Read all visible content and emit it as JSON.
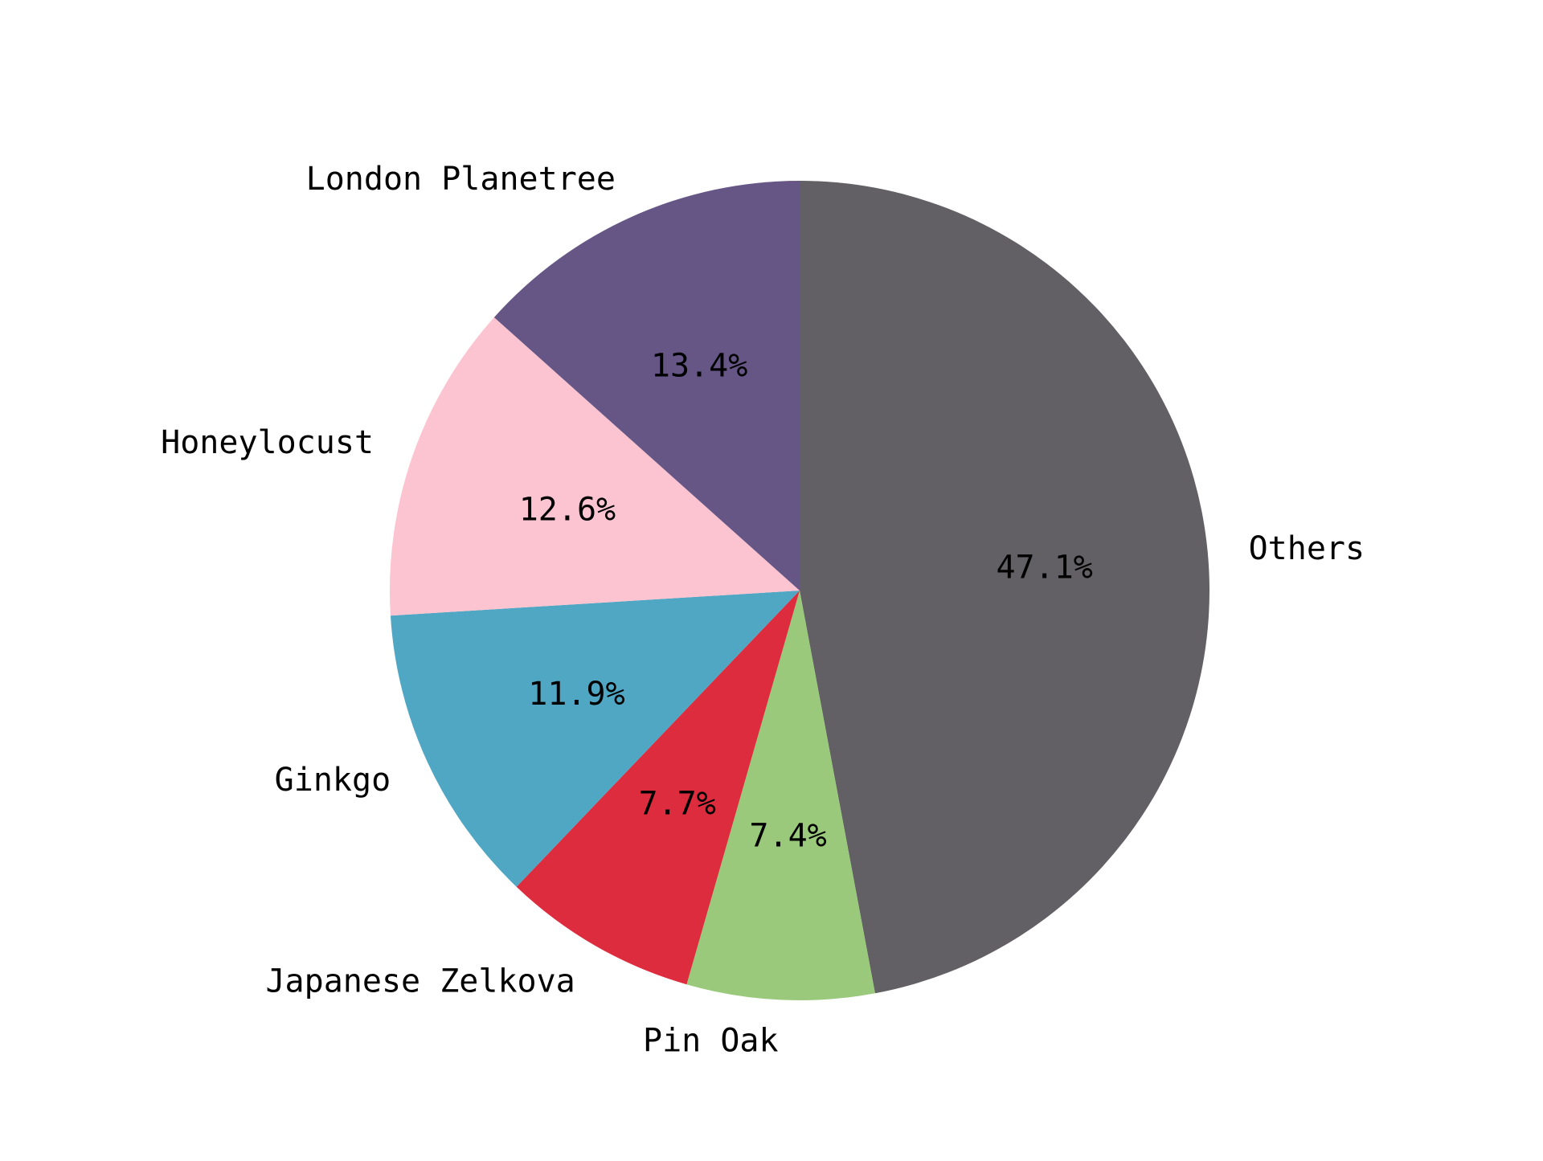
{
  "chart_data": {
    "type": "pie",
    "start": "top, clockwise",
    "slices": [
      {
        "label": "Others",
        "value": 47.1,
        "pct_text": "47.1%",
        "color": "#626064"
      },
      {
        "label": "Pin Oak",
        "value": 7.4,
        "pct_text": "7.4%",
        "color": "#9ac97c"
      },
      {
        "label": "Japanese Zelkova",
        "value": 7.7,
        "pct_text": "7.7%",
        "color": "#dc2c3e"
      },
      {
        "label": "Ginkgo",
        "value": 11.9,
        "pct_text": "11.9%",
        "color": "#50a7c3"
      },
      {
        "label": "Honeylocust",
        "value": 12.6,
        "pct_text": "12.6%",
        "color": "#fcc3d1"
      },
      {
        "label": "London Planetree",
        "value": 13.4,
        "pct_text": "13.4%",
        "color": "#665686"
      }
    ]
  }
}
